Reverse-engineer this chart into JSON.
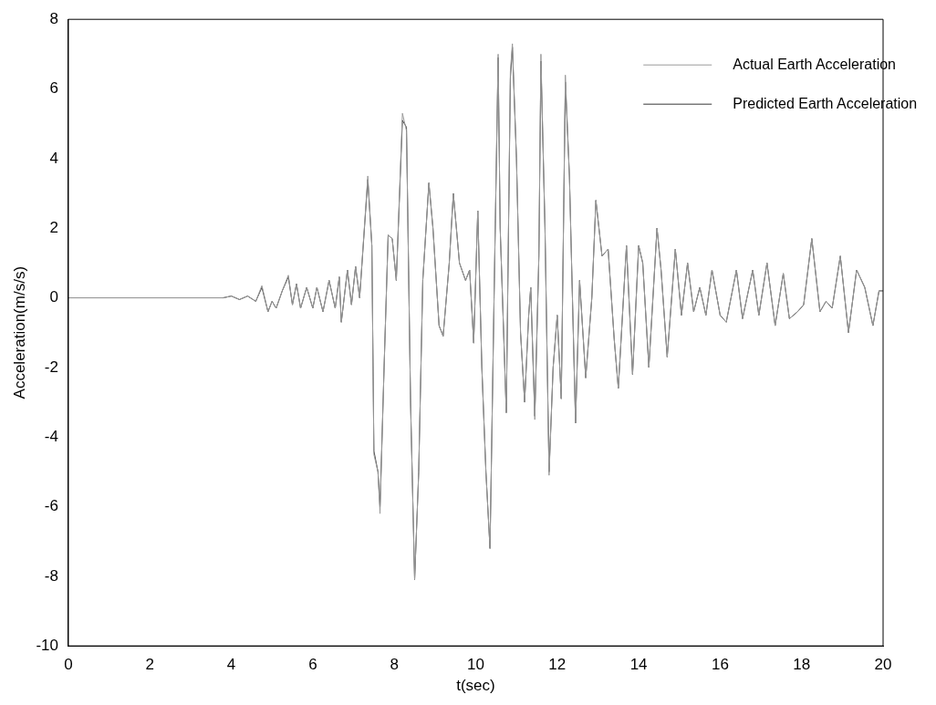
{
  "chart_data": {
    "type": "line",
    "xlabel": "t(sec)",
    "ylabel": "Acceleration(m/s/s)",
    "xlim": [
      0,
      20
    ],
    "ylim": [
      -10,
      8
    ],
    "xticks": [
      0,
      2,
      4,
      6,
      8,
      10,
      12,
      14,
      16,
      18,
      20
    ],
    "yticks": [
      -10,
      -8,
      -6,
      -4,
      -2,
      0,
      2,
      4,
      6,
      8
    ],
    "legend": "top right",
    "grid": false,
    "marker": "none",
    "line_style": "solid",
    "x": [
      0,
      3.8,
      4.0,
      4.2,
      4.4,
      4.6,
      4.75,
      4.9,
      5.0,
      5.1,
      5.25,
      5.4,
      5.5,
      5.6,
      5.7,
      5.85,
      6.0,
      6.1,
      6.25,
      6.4,
      6.55,
      6.65,
      6.7,
      6.85,
      6.95,
      7.05,
      7.15,
      7.35,
      7.45,
      7.5,
      7.6,
      7.65,
      7.75,
      7.85,
      7.95,
      8.05,
      8.2,
      8.3,
      8.4,
      8.5,
      8.6,
      8.7,
      8.85,
      8.95,
      9.1,
      9.2,
      9.35,
      9.45,
      9.6,
      9.75,
      9.85,
      9.95,
      10.05,
      10.15,
      10.25,
      10.35,
      10.45,
      10.55,
      10.6,
      10.75,
      10.85,
      10.9,
      11.0,
      11.1,
      11.2,
      11.3,
      11.35,
      11.45,
      11.55,
      11.6,
      11.7,
      11.8,
      11.9,
      12.0,
      12.1,
      12.2,
      12.3,
      12.45,
      12.55,
      12.7,
      12.85,
      12.95,
      13.1,
      13.25,
      13.4,
      13.5,
      13.7,
      13.85,
      14.0,
      14.1,
      14.25,
      14.45,
      14.55,
      14.7,
      14.9,
      15.05,
      15.2,
      15.35,
      15.5,
      15.65,
      15.8,
      16.0,
      16.15,
      16.4,
      16.55,
      16.8,
      16.95,
      17.15,
      17.35,
      17.55,
      17.7,
      17.9,
      18.05,
      18.25,
      18.45,
      18.6,
      18.75,
      18.95,
      19.15,
      19.35,
      19.55,
      19.75,
      19.9,
      20
    ],
    "series": [
      {
        "name": "Actual Earth Acceleration",
        "color": "#9a9a9a",
        "values": [
          0,
          0,
          0.05,
          -0.05,
          0.05,
          -0.1,
          0.35,
          -0.4,
          -0.1,
          -0.3,
          0.2,
          0.65,
          -0.2,
          0.4,
          -0.3,
          0.3,
          -0.3,
          0.3,
          -0.4,
          0.5,
          -0.3,
          0.6,
          -0.7,
          0.8,
          -0.2,
          0.9,
          0,
          3.5,
          1.5,
          -4.5,
          -5,
          -6.2,
          -2,
          1.8,
          1.7,
          0.5,
          5.3,
          4.8,
          -3,
          -8.1,
          -5,
          0.5,
          3.3,
          2,
          -0.8,
          -1.1,
          1,
          3,
          1,
          0.5,
          0.8,
          -1.3,
          2.5,
          -2,
          -5,
          -7.2,
          0,
          7,
          2,
          -3.3,
          6.5,
          7.3,
          4,
          -1,
          -3,
          -0.5,
          0.3,
          -3.5,
          1.2,
          7,
          2,
          -5.1,
          -2,
          -0.5,
          -2.9,
          6.4,
          3.5,
          -3.6,
          0.5,
          -2.3,
          0,
          2.8,
          1.2,
          1.4,
          -1.2,
          -2.6,
          1.5,
          -2.2,
          1.5,
          1,
          -2,
          2,
          0.8,
          -1.7,
          1.4,
          -0.5,
          1,
          -0.4,
          0.3,
          -0.5,
          0.8,
          -0.5,
          -0.7,
          0.8,
          -0.6,
          0.8,
          -0.5,
          1,
          -0.8,
          0.7,
          -0.6,
          -0.4,
          -0.2,
          1.7,
          -0.4,
          -0.1,
          -0.3,
          1.2,
          -1,
          0.8,
          0.3,
          -0.8,
          0.2,
          0.2
        ]
      },
      {
        "name": "Predicted Earth Acceleration",
        "color": "#383838",
        "values": [
          0,
          0,
          0.05,
          -0.05,
          0.05,
          -0.1,
          0.3,
          -0.4,
          -0.1,
          -0.3,
          0.2,
          0.6,
          -0.2,
          0.4,
          -0.3,
          0.3,
          -0.3,
          0.3,
          -0.4,
          0.5,
          -0.3,
          0.6,
          -0.7,
          0.8,
          -0.2,
          0.9,
          0,
          3.4,
          1.5,
          -4.4,
          -5,
          -6,
          -2,
          1.8,
          1.7,
          0.5,
          5.1,
          4.9,
          -3,
          -8.1,
          -5,
          0.5,
          3.3,
          2,
          -0.8,
          -1.1,
          1,
          3,
          1,
          0.5,
          0.8,
          -1.3,
          2.5,
          -2,
          -5,
          -7.2,
          0,
          6.9,
          2,
          -3.3,
          6.3,
          7.2,
          4,
          -1,
          -3,
          -0.5,
          0.3,
          -3.4,
          1.2,
          6.8,
          2,
          -5,
          -2,
          -0.5,
          -2.9,
          6.2,
          3.5,
          -3.6,
          0.5,
          -2.3,
          0,
          2.8,
          1.2,
          1.4,
          -1.2,
          -2.6,
          1.5,
          -2.2,
          1.5,
          1,
          -2,
          2,
          0.8,
          -1.7,
          1.4,
          -0.5,
          1,
          -0.4,
          0.3,
          -0.5,
          0.8,
          -0.5,
          -0.7,
          0.8,
          -0.6,
          0.8,
          -0.5,
          1,
          -0.8,
          0.7,
          -0.6,
          -0.4,
          -0.2,
          1.7,
          -0.4,
          -0.1,
          -0.3,
          1.2,
          -1,
          0.8,
          0.3,
          -0.8,
          0.2,
          0.2
        ]
      }
    ]
  }
}
